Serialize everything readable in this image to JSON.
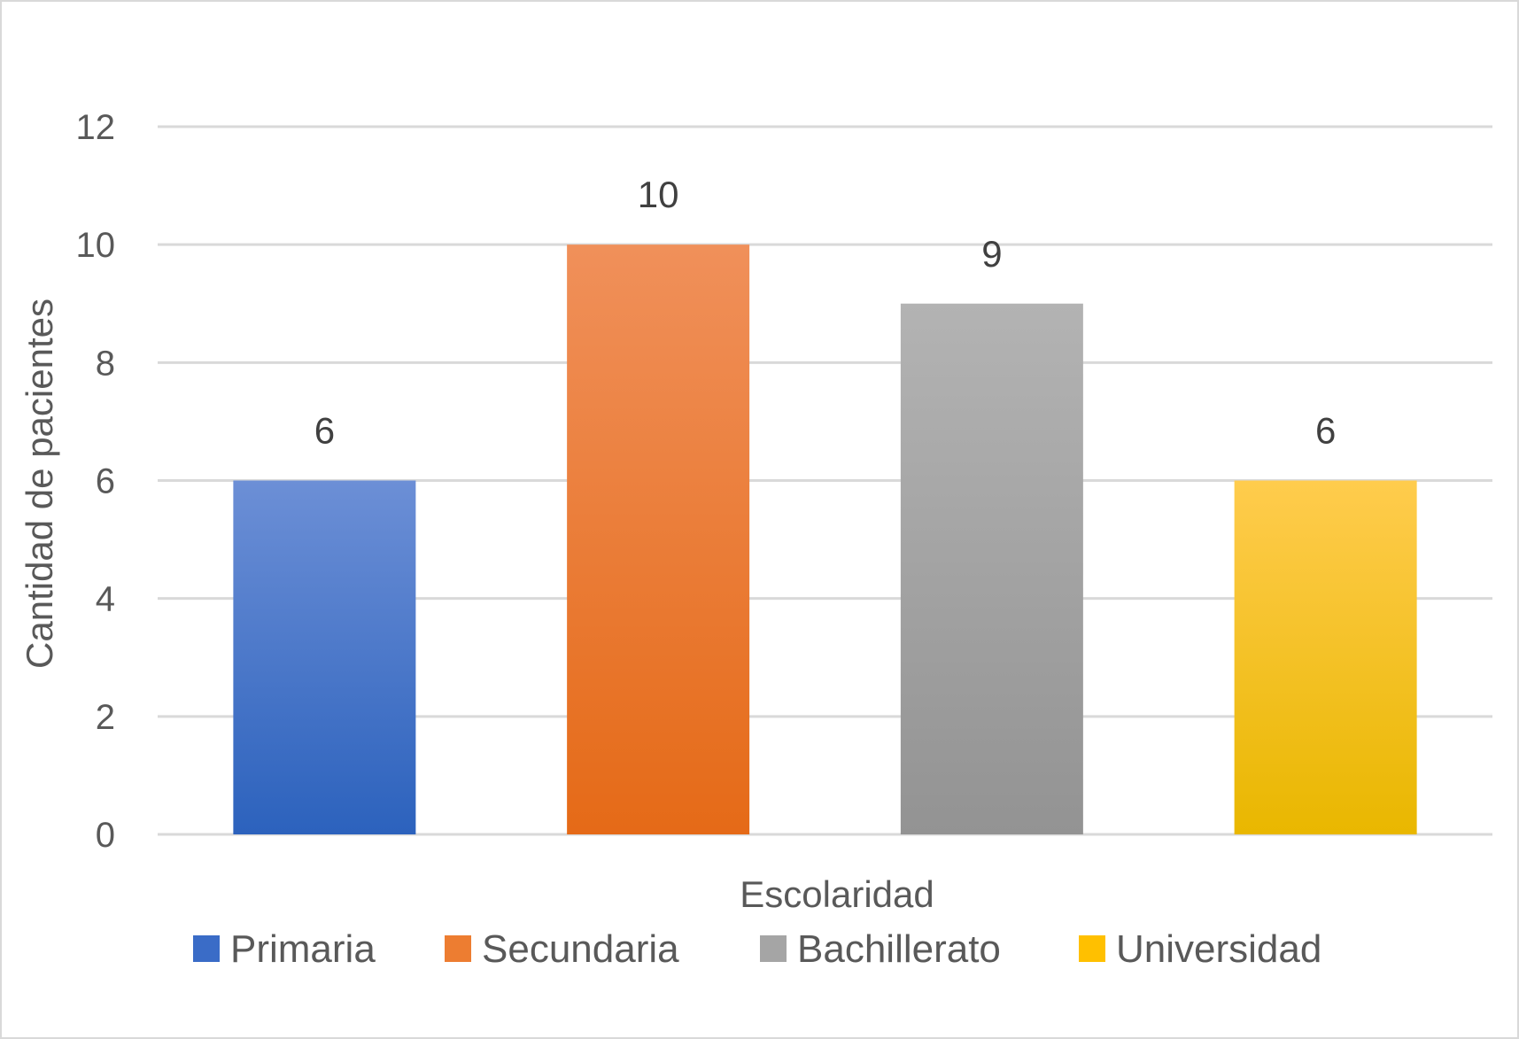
{
  "chart_data": {
    "type": "bar",
    "categories": [
      "Primaria",
      "Secundaria",
      "Bachillerato",
      "Universidad"
    ],
    "values": [
      6,
      10,
      9,
      6
    ],
    "data_labels": [
      "6",
      "10",
      "9",
      "6"
    ],
    "xlabel": "Escolaridad",
    "ylabel": "Cantidad de pacientes",
    "ylim": [
      0,
      12
    ],
    "yticks": [
      "0",
      "2",
      "4",
      "6",
      "8",
      "10",
      "12"
    ],
    "grid": true,
    "legend_position": "bottom",
    "legend": [
      "Primaria",
      "Secundaria",
      "Bachillerato",
      "Universidad"
    ],
    "colors": [
      {
        "top": "#6c8fd6",
        "bottom": "#2c62bd",
        "legend": "#3a6cc7"
      },
      {
        "top": "#f0905a",
        "bottom": "#e56a17",
        "legend": "#ed7d31"
      },
      {
        "top": "#b3b3b3",
        "bottom": "#939393",
        "legend": "#a5a5a5"
      },
      {
        "top": "#ffcc4d",
        "bottom": "#e9b700",
        "legend": "#ffc000"
      }
    ]
  }
}
